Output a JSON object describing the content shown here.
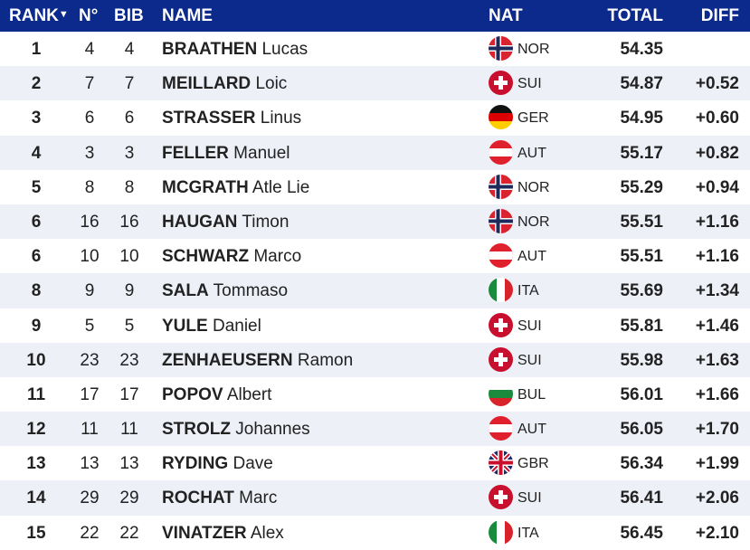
{
  "header": {
    "rank": "RANK",
    "no": "N°",
    "bib": "BIB",
    "name": "NAME",
    "nat": "NAT",
    "total": "TOTAL",
    "diff": "DIFF",
    "sort_icon": "triangle-down-icon"
  },
  "colors": {
    "header_bg": "#0c2a8c",
    "alt_row": "#eef0f8"
  },
  "rows": [
    {
      "rank": "1",
      "no": "4",
      "bib": "4",
      "last": "BRAATHEN",
      "first": "Lucas",
      "nat": "NOR",
      "total": "54.35",
      "diff": ""
    },
    {
      "rank": "2",
      "no": "7",
      "bib": "7",
      "last": "MEILLARD",
      "first": "Loic",
      "nat": "SUI",
      "total": "54.87",
      "diff": "+0.52"
    },
    {
      "rank": "3",
      "no": "6",
      "bib": "6",
      "last": "STRASSER",
      "first": "Linus",
      "nat": "GER",
      "total": "54.95",
      "diff": "+0.60"
    },
    {
      "rank": "4",
      "no": "3",
      "bib": "3",
      "last": "FELLER",
      "first": "Manuel",
      "nat": "AUT",
      "total": "55.17",
      "diff": "+0.82"
    },
    {
      "rank": "5",
      "no": "8",
      "bib": "8",
      "last": "MCGRATH",
      "first": "Atle Lie",
      "nat": "NOR",
      "total": "55.29",
      "diff": "+0.94"
    },
    {
      "rank": "6",
      "no": "16",
      "bib": "16",
      "last": "HAUGAN",
      "first": "Timon",
      "nat": "NOR",
      "total": "55.51",
      "diff": "+1.16"
    },
    {
      "rank": "6",
      "no": "10",
      "bib": "10",
      "last": "SCHWARZ",
      "first": "Marco",
      "nat": "AUT",
      "total": "55.51",
      "diff": "+1.16"
    },
    {
      "rank": "8",
      "no": "9",
      "bib": "9",
      "last": "SALA",
      "first": "Tommaso",
      "nat": "ITA",
      "total": "55.69",
      "diff": "+1.34"
    },
    {
      "rank": "9",
      "no": "5",
      "bib": "5",
      "last": "YULE",
      "first": "Daniel",
      "nat": "SUI",
      "total": "55.81",
      "diff": "+1.46"
    },
    {
      "rank": "10",
      "no": "23",
      "bib": "23",
      "last": "ZENHAEUSERN",
      "first": "Ramon",
      "nat": "SUI",
      "total": "55.98",
      "diff": "+1.63"
    },
    {
      "rank": "11",
      "no": "17",
      "bib": "17",
      "last": "POPOV",
      "first": "Albert",
      "nat": "BUL",
      "total": "56.01",
      "diff": "+1.66"
    },
    {
      "rank": "12",
      "no": "11",
      "bib": "11",
      "last": "STROLZ",
      "first": "Johannes",
      "nat": "AUT",
      "total": "56.05",
      "diff": "+1.70"
    },
    {
      "rank": "13",
      "no": "13",
      "bib": "13",
      "last": "RYDING",
      "first": "Dave",
      "nat": "GBR",
      "total": "56.34",
      "diff": "+1.99"
    },
    {
      "rank": "14",
      "no": "29",
      "bib": "29",
      "last": "ROCHAT",
      "first": "Marc",
      "nat": "SUI",
      "total": "56.41",
      "diff": "+2.06"
    },
    {
      "rank": "15",
      "no": "22",
      "bib": "22",
      "last": "VINATZER",
      "first": "Alex",
      "nat": "ITA",
      "total": "56.45",
      "diff": "+2.10"
    }
  ]
}
